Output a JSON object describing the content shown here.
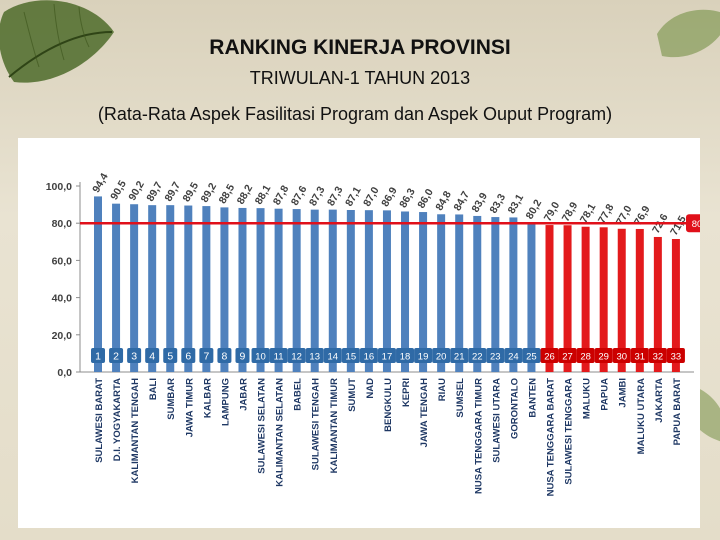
{
  "header": {
    "title": "RANKING KINERJA PROVINSI",
    "subtitle": "TRIWULAN-1 TAHUN 2013",
    "description": "(Rata-Rata Aspek Fasilitasi Program dan Aspek Ouput Program)"
  },
  "colors": {
    "above_threshold": "#4f81bd",
    "below_threshold": "#e31a1c",
    "threshold_line": "#e0101a",
    "rank_badge_blue": "#2f6aa6",
    "rank_badge_red": "#cc0000"
  },
  "chart_data": {
    "type": "bar",
    "title": "RANKING KINERJA PROVINSI",
    "xlabel": "",
    "ylabel": "",
    "ylim": [
      0,
      100
    ],
    "yticks": [
      "0,0",
      "20,0",
      "40,0",
      "60,0",
      "80,0",
      "100,0"
    ],
    "threshold": {
      "value": 80,
      "label": "80"
    },
    "categories": [
      "SULAWESI BARAT",
      "D.I. YOGYAKARTA",
      "KALIMANTAN TENGAH",
      "BALI",
      "SUMBAR",
      "JAWA TIMUR",
      "KALBAR",
      "LAMPUNG",
      "JABAR",
      "SULAWESI SELATAN",
      "KALIMANTAN SELATAN",
      "BABEL",
      "SULAWESI TENGAH",
      "KALIMANTAN TIMUR",
      "SUMUT",
      "NAD",
      "BENGKULU",
      "KEPRI",
      "JAWA TENGAH",
      "RIAU",
      "SUMSEL",
      "NUSA TENGGARA TIMUR",
      "SULAWESI UTARA",
      "GORONTALO",
      "BANTEN",
      "NUSA TENGGARA BARAT",
      "SULAWESI TENGGARA",
      "MALUKU",
      "PAPUA",
      "JAMBI",
      "MALUKU UTARA",
      "JAKARTA",
      "PAPUA BARAT"
    ],
    "values": [
      94.4,
      90.5,
      90.2,
      89.7,
      89.7,
      89.5,
      89.2,
      88.5,
      88.2,
      88.1,
      87.8,
      87.6,
      87.3,
      87.3,
      87.1,
      87.0,
      86.9,
      86.3,
      86.0,
      84.8,
      84.7,
      83.9,
      83.3,
      83.1,
      80.2,
      79.0,
      78.9,
      78.1,
      77.8,
      77.0,
      76.9,
      72.6,
      71.5
    ],
    "value_labels": [
      "94,4",
      "90,5",
      "90,2",
      "89,7",
      "89,7",
      "89,5",
      "89,2",
      "88,5",
      "88,2",
      "88,1",
      "87,8",
      "87,6",
      "87,3",
      "87,3",
      "87,1",
      "87,0",
      "86,9",
      "86,3",
      "86,0",
      "84,8",
      "84,7",
      "83,9",
      "83,3",
      "83,1",
      "80,2",
      "79,0",
      "78,9",
      "78,1",
      "77,8",
      "77,0",
      "76,9",
      "72,6",
      "71,5"
    ],
    "ranks": [
      "1",
      "2",
      "3",
      "4",
      "5",
      "6",
      "7",
      "8",
      "9",
      "10",
      "11",
      "12",
      "13",
      "14",
      "15",
      "16",
      "17",
      "18",
      "19",
      "20",
      "21",
      "22",
      "23",
      "24",
      "25",
      "26",
      "27",
      "28",
      "29",
      "30",
      "31",
      "32",
      "33"
    ]
  }
}
